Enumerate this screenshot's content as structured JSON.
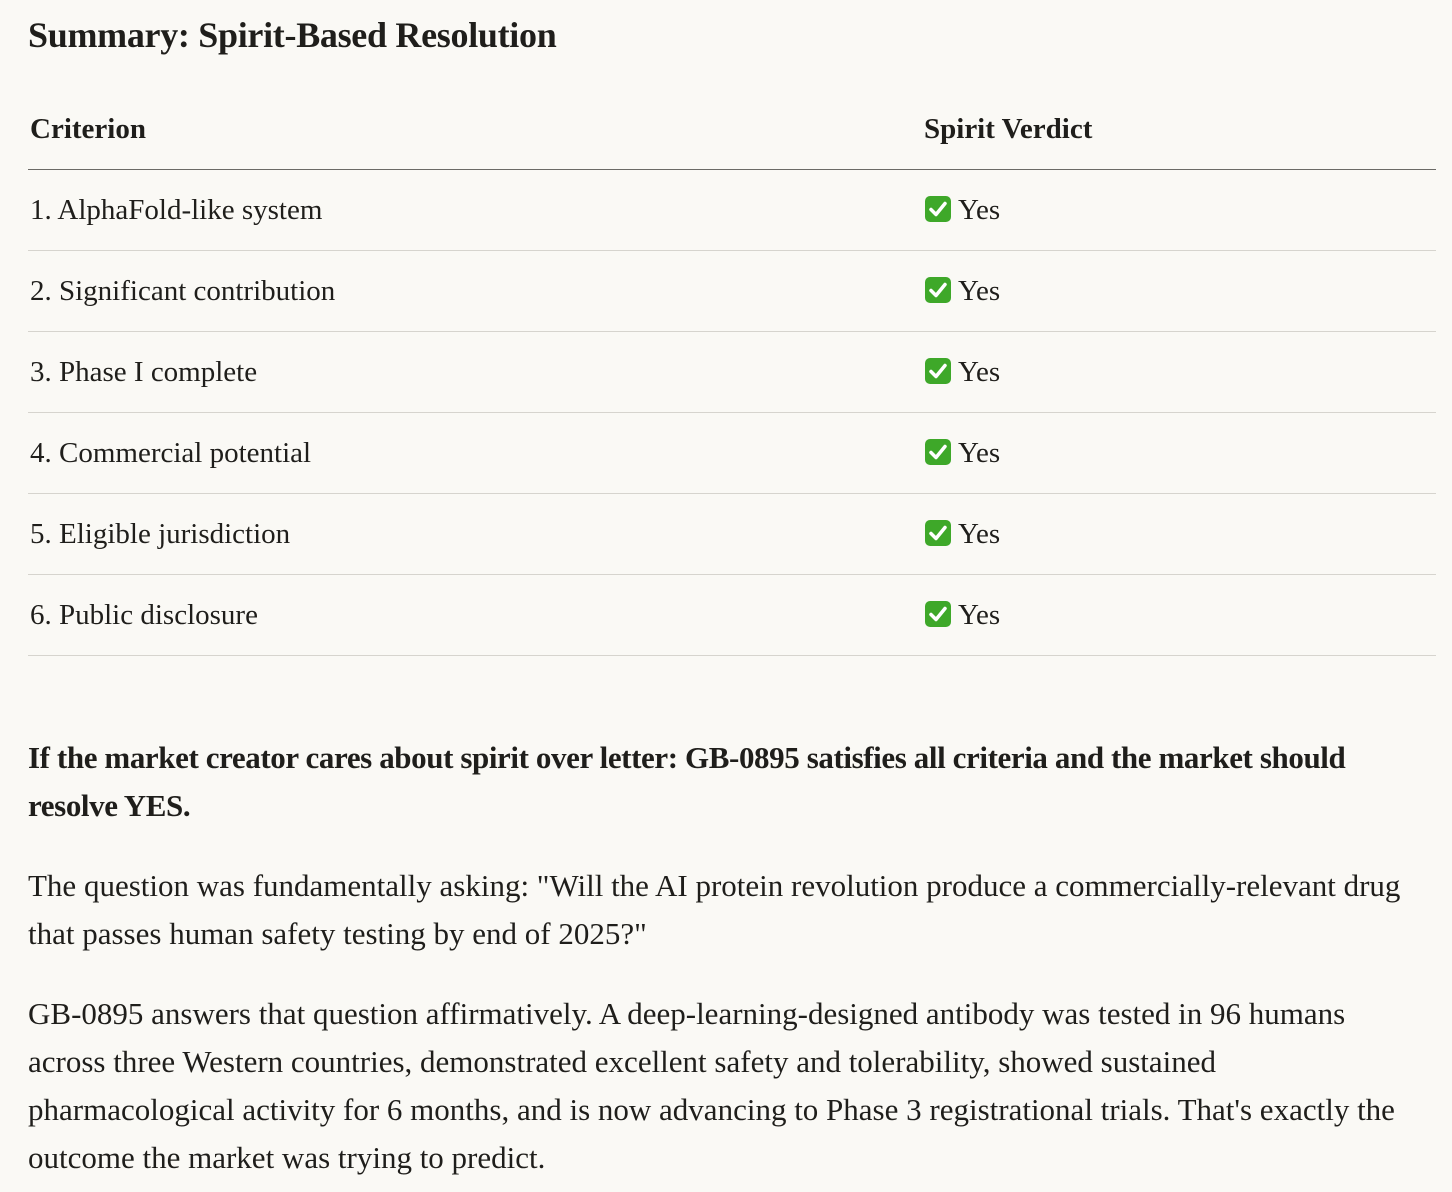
{
  "heading": "Summary: Spirit-Based Resolution",
  "table": {
    "header": [
      "Criterion",
      "Spirit Verdict"
    ],
    "rows": [
      [
        "1. AlphaFold-like system",
        "Yes"
      ],
      [
        "2. Significant contribution",
        "Yes"
      ],
      [
        "3. Phase I complete",
        "Yes"
      ],
      [
        "4. Commercial potential",
        "Yes"
      ],
      [
        "5. Eligible jurisdiction",
        "Yes"
      ],
      [
        "6. Public disclosure",
        "Yes"
      ]
    ]
  },
  "conclusion": "If the market creator cares about spirit over letter: GB-0895 satisfies all criteria and the market should resolve YES.",
  "paragraphs": [
    "The question was fundamentally asking: \"Will the AI protein revolution produce a commercially-relevant drug that passes human safety testing by end of 2025?\"",
    "GB-0895 answers that question affirmatively. A deep-learning-designed antibody was tested in 96 humans across three Western countries, demonstrated excellent safety and tolerability, showed sustained pharmacological activity for 6 months, and is now advancing to Phase 3 registrational trials. That's exactly the outcome the market was trying to predict."
  ]
}
